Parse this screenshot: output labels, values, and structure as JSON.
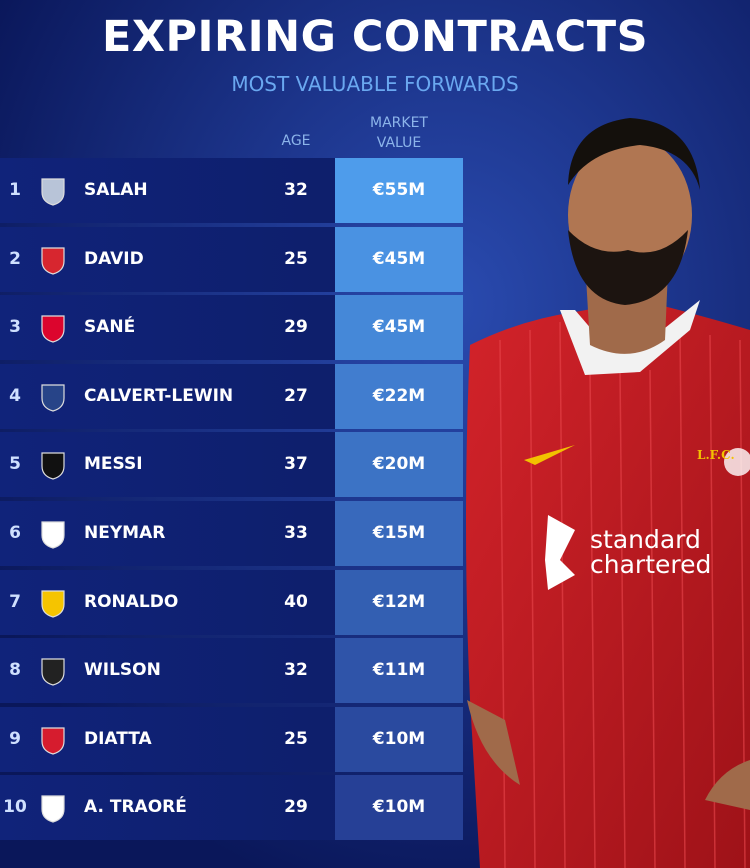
{
  "header": {
    "title": "EXPIRING CONTRACTS",
    "subtitle": "MOST VALUABLE FORWARDS"
  },
  "table": {
    "columns": {
      "age": "AGE",
      "market_value": "MARKET VALUE"
    },
    "rows": [
      {
        "rank": 1,
        "name": "SALAH",
        "age": 32,
        "value": "€55M"
      },
      {
        "rank": 2,
        "name": "DAVID",
        "age": 25,
        "value": "€45M"
      },
      {
        "rank": 3,
        "name": "SANÉ",
        "age": 29,
        "value": "€45M"
      },
      {
        "rank": 4,
        "name": "CALVERT-LEWIN",
        "age": 27,
        "value": "€22M"
      },
      {
        "rank": 5,
        "name": "MESSI",
        "age": 37,
        "value": "€20M"
      },
      {
        "rank": 6,
        "name": "NEYMAR",
        "age": 33,
        "value": "€15M"
      },
      {
        "rank": 7,
        "name": "RONALDO",
        "age": 40,
        "value": "€12M"
      },
      {
        "rank": 8,
        "name": "WILSON",
        "age": 32,
        "value": "€11M"
      },
      {
        "rank": 9,
        "name": "DIATTA",
        "age": 25,
        "value": "€10M"
      },
      {
        "rank": 10,
        "name": "A. TRAORÉ",
        "age": 29,
        "value": "€10M"
      }
    ]
  },
  "photo": {
    "crest_text": "L.F.C.",
    "sponsor_line1": "standard",
    "sponsor_line2": "chartered"
  }
}
